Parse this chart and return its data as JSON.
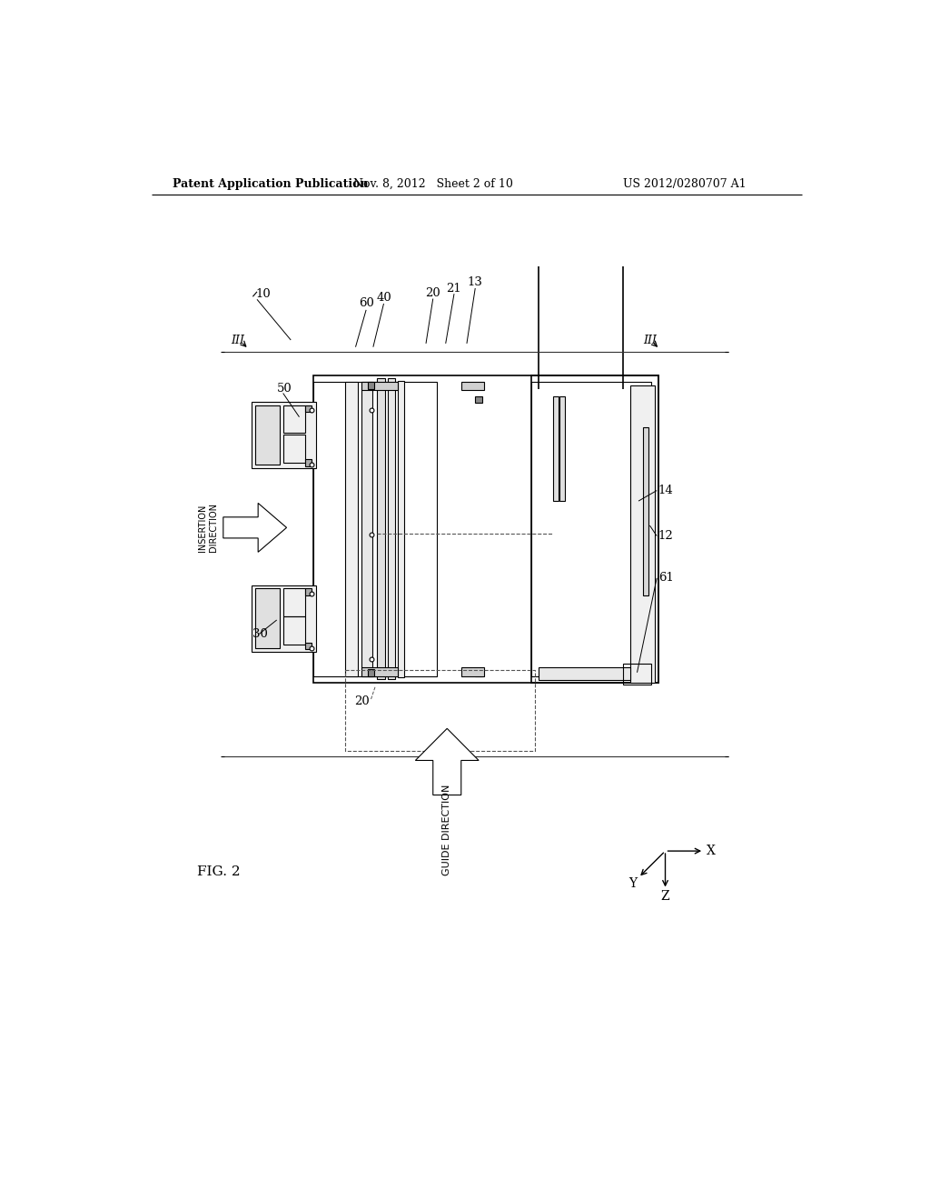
{
  "bg_color": "#ffffff",
  "line_color": "#000000",
  "header_left": "Patent Application Publication",
  "header_mid": "Nov. 8, 2012   Sheet 2 of 10",
  "header_right": "US 2012/0280707 A1",
  "fig_label": "FIG. 2",
  "insertion_text": "INSERTION\nDIRECTION",
  "guide_text": "GUIDE DIRECTION"
}
